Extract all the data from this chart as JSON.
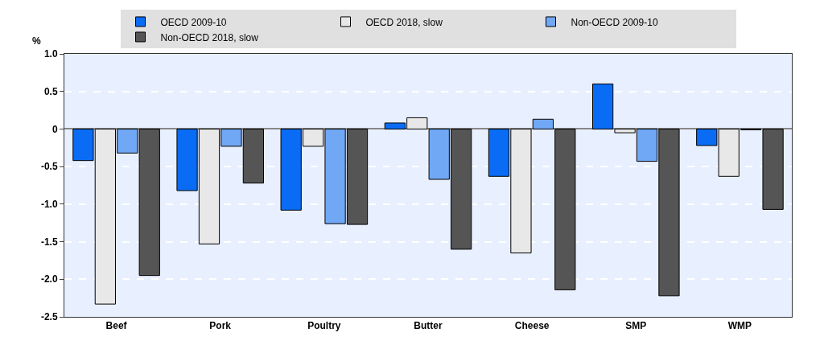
{
  "chart_data": {
    "type": "bar",
    "ylabel": "%",
    "categories": [
      "Beef",
      "Pork",
      "Poultry",
      "Butter",
      "Cheese",
      "SMP",
      "WMP"
    ],
    "series": [
      {
        "name": "OECD 2009-10",
        "color": "#0a6cf5",
        "values": [
          -0.42,
          -0.82,
          -1.08,
          0.08,
          -0.63,
          0.6,
          -0.22
        ]
      },
      {
        "name": "OECD 2018, slow",
        "color": "#e8e8e8",
        "values": [
          -2.33,
          -1.53,
          -0.23,
          0.15,
          -1.65,
          -0.05,
          -0.63
        ]
      },
      {
        "name": "Non-OECD 2009-10",
        "color": "#70a8f5",
        "values": [
          -0.32,
          -0.23,
          -1.26,
          -0.67,
          0.13,
          -0.43,
          -0.01
        ]
      },
      {
        "name": "Non-OECD 2018, slow",
        "color": "#555555",
        "values": [
          -1.95,
          -0.72,
          -1.27,
          -1.6,
          -2.14,
          -2.22,
          -1.07
        ]
      }
    ],
    "ylim": [
      -2.5,
      1.0
    ],
    "yticks": [
      {
        "value": -2.5,
        "label": "-2.5"
      },
      {
        "value": -2.0,
        "label": "-2.0"
      },
      {
        "value": -1.5,
        "label": "-1.5"
      },
      {
        "value": -1.0,
        "label": "-1.0"
      },
      {
        "value": -0.5,
        "label": "-0.5"
      },
      0,
      {
        "value": 0.5,
        "label": "0.5"
      },
      {
        "value": 1.0,
        "label": "1.0"
      }
    ],
    "grid": "y",
    "legend": "top"
  }
}
